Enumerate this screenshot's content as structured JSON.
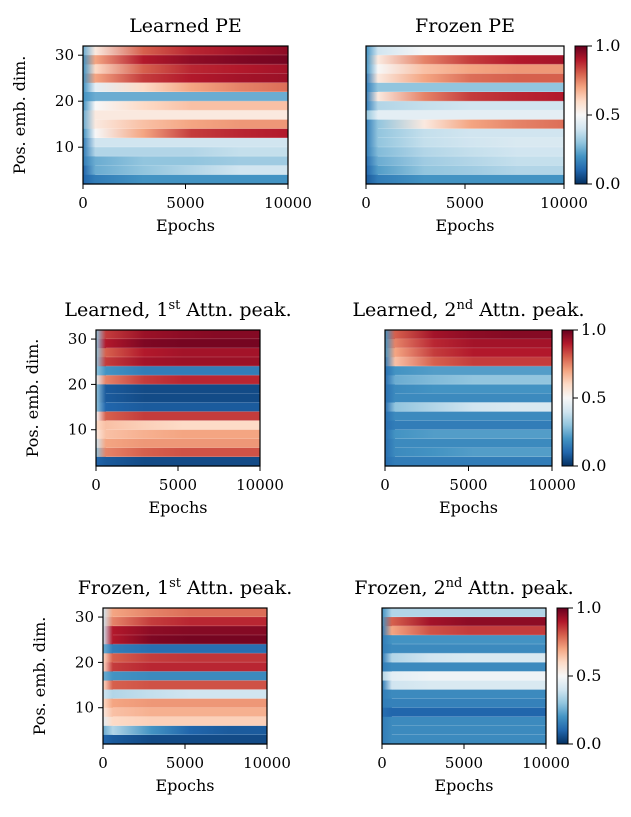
{
  "colors": {
    "colormap": "RdBu_r",
    "low": "#053061",
    "mid": "#f7f7f7",
    "high": "#67001f"
  },
  "chart_data": [
    {
      "type": "heatmap",
      "title": "Learned PE",
      "xlabel": "Epochs",
      "ylabel": "Pos. emb. dim.",
      "xlim": [
        0,
        10000
      ],
      "ylim": [
        2,
        32
      ],
      "xticks": [
        "0",
        "5000",
        "10000"
      ],
      "yticks": [
        "10",
        "20",
        "30"
      ],
      "colorbar": null,
      "bands": [
        {
          "y": 30,
          "values": [
            0.25,
            0.55,
            0.8,
            0.88,
            0.92,
            0.95
          ]
        },
        {
          "y": 28,
          "values": [
            0.2,
            0.7,
            0.9,
            0.95,
            0.97,
            0.98
          ]
        },
        {
          "y": 26,
          "values": [
            0.2,
            0.6,
            0.8,
            0.88,
            0.9,
            0.92
          ]
        },
        {
          "y": 24,
          "values": [
            0.2,
            0.7,
            0.85,
            0.9,
            0.92,
            0.93
          ]
        },
        {
          "y": 22,
          "values": [
            0.2,
            0.45,
            0.6,
            0.7,
            0.75,
            0.78
          ]
        },
        {
          "y": 20,
          "values": [
            0.2,
            0.25,
            0.25,
            0.25,
            0.25,
            0.25
          ]
        },
        {
          "y": 18,
          "values": [
            0.2,
            0.5,
            0.6,
            0.65,
            0.65,
            0.65
          ]
        },
        {
          "y": 16,
          "values": [
            0.25,
            0.55,
            0.55,
            0.55,
            0.55,
            0.55
          ]
        },
        {
          "y": 14,
          "values": [
            0.25,
            0.55,
            0.65,
            0.7,
            0.72,
            0.72
          ]
        },
        {
          "y": 12,
          "values": [
            0.2,
            0.5,
            0.7,
            0.85,
            0.88,
            0.9
          ]
        },
        {
          "y": 10,
          "values": [
            0.15,
            0.4,
            0.4,
            0.4,
            0.4,
            0.4
          ]
        },
        {
          "y": 8,
          "values": [
            0.15,
            0.35,
            0.35,
            0.35,
            0.38,
            0.38
          ]
        },
        {
          "y": 6,
          "values": [
            0.15,
            0.25,
            0.3,
            0.3,
            0.32,
            0.32
          ]
        },
        {
          "y": 4,
          "values": [
            0.1,
            0.25,
            0.3,
            0.35,
            0.4,
            0.4
          ]
        },
        {
          "y": 2,
          "values": [
            0.1,
            0.15,
            0.2,
            0.2,
            0.2,
            0.2
          ]
        }
      ]
    },
    {
      "type": "heatmap",
      "title": "Frozen PE",
      "xlabel": "Epochs",
      "ylabel": "",
      "xlim": [
        0,
        10000
      ],
      "ylim": [
        2,
        32
      ],
      "xticks": [
        "0",
        "5000",
        "10000"
      ],
      "yticks": [],
      "colorbar": {
        "ticks": [
          "0.0",
          "0.5",
          "1.0"
        ],
        "range": [
          0,
          1
        ]
      },
      "bands": [
        {
          "y": 30,
          "values": [
            0.2,
            0.4,
            0.5,
            0.5,
            0.5,
            0.5
          ]
        },
        {
          "y": 28,
          "values": [
            0.2,
            0.55,
            0.75,
            0.85,
            0.9,
            0.92
          ]
        },
        {
          "y": 26,
          "values": [
            0.2,
            0.5,
            0.65,
            0.7,
            0.72,
            0.72
          ]
        },
        {
          "y": 24,
          "values": [
            0.15,
            0.55,
            0.7,
            0.78,
            0.8,
            0.8
          ]
        },
        {
          "y": 22,
          "values": [
            0.15,
            0.3,
            0.3,
            0.3,
            0.3,
            0.3
          ]
        },
        {
          "y": 20,
          "values": [
            0.15,
            0.55,
            0.75,
            0.85,
            0.88,
            0.9
          ]
        },
        {
          "y": 18,
          "values": [
            0.15,
            0.35,
            0.38,
            0.4,
            0.4,
            0.4
          ]
        },
        {
          "y": 16,
          "values": [
            0.3,
            0.45,
            0.45,
            0.45,
            0.45,
            0.45
          ]
        },
        {
          "y": 14,
          "values": [
            0.15,
            0.3,
            0.55,
            0.7,
            0.75,
            0.78
          ]
        },
        {
          "y": 12,
          "values": [
            0.15,
            0.3,
            0.38,
            0.4,
            0.4,
            0.4
          ]
        },
        {
          "y": 10,
          "values": [
            0.15,
            0.3,
            0.38,
            0.4,
            0.42,
            0.42
          ]
        },
        {
          "y": 8,
          "values": [
            0.15,
            0.28,
            0.35,
            0.38,
            0.4,
            0.4
          ]
        },
        {
          "y": 6,
          "values": [
            0.12,
            0.25,
            0.32,
            0.35,
            0.38,
            0.38
          ]
        },
        {
          "y": 4,
          "values": [
            0.1,
            0.22,
            0.3,
            0.32,
            0.35,
            0.35
          ]
        },
        {
          "y": 2,
          "values": [
            0.08,
            0.15,
            0.2,
            0.2,
            0.2,
            0.2
          ]
        }
      ]
    },
    {
      "type": "heatmap",
      "title": "Learned, 1",
      "title_sup": "st",
      "title_tail": " Attn. peak.",
      "xlabel": "Epochs",
      "ylabel": "Pos. emb. dim.",
      "xlim": [
        0,
        10000
      ],
      "ylim": [
        2,
        32
      ],
      "xticks": [
        "0",
        "5000",
        "10000"
      ],
      "yticks": [
        "10",
        "20",
        "30"
      ],
      "colorbar": null,
      "bands": [
        {
          "y": 30,
          "values": [
            0.3,
            0.85,
            0.93,
            0.95,
            0.96,
            0.96
          ]
        },
        {
          "y": 28,
          "values": [
            0.3,
            0.9,
            0.97,
            0.98,
            0.98,
            0.98
          ]
        },
        {
          "y": 26,
          "values": [
            0.3,
            0.8,
            0.9,
            0.92,
            0.92,
            0.92
          ]
        },
        {
          "y": 24,
          "values": [
            0.3,
            0.85,
            0.92,
            0.93,
            0.93,
            0.93
          ]
        },
        {
          "y": 22,
          "values": [
            0.3,
            0.2,
            0.15,
            0.15,
            0.15,
            0.15
          ]
        },
        {
          "y": 20,
          "values": [
            0.45,
            0.75,
            0.85,
            0.88,
            0.88,
            0.88
          ]
        },
        {
          "y": 18,
          "values": [
            0.3,
            0.08,
            0.05,
            0.05,
            0.05,
            0.05
          ]
        },
        {
          "y": 16,
          "values": [
            0.3,
            0.08,
            0.05,
            0.05,
            0.05,
            0.05
          ]
        },
        {
          "y": 14,
          "values": [
            0.3,
            0.1,
            0.08,
            0.08,
            0.08,
            0.08
          ]
        },
        {
          "y": 12,
          "values": [
            0.5,
            0.8,
            0.85,
            0.85,
            0.85,
            0.85
          ]
        },
        {
          "y": 10,
          "values": [
            0.6,
            0.65,
            0.62,
            0.6,
            0.6,
            0.6
          ]
        },
        {
          "y": 8,
          "values": [
            0.55,
            0.65,
            0.68,
            0.7,
            0.7,
            0.7
          ]
        },
        {
          "y": 6,
          "values": [
            0.4,
            0.7,
            0.72,
            0.72,
            0.72,
            0.72
          ]
        },
        {
          "y": 4,
          "values": [
            0.3,
            0.75,
            0.8,
            0.82,
            0.82,
            0.82
          ]
        },
        {
          "y": 2,
          "values": [
            0.1,
            0.08,
            0.05,
            0.05,
            0.05,
            0.05
          ]
        }
      ]
    },
    {
      "type": "heatmap",
      "title": "Learned, 2",
      "title_sup": "nd",
      "title_tail": " Attn. peak.",
      "xlabel": "Epochs",
      "ylabel": "",
      "xlim": [
        0,
        10000
      ],
      "ylim": [
        2,
        32
      ],
      "xticks": [
        "0",
        "5000",
        "10000"
      ],
      "yticks": [],
      "colorbar": {
        "ticks": [
          "0.0",
          "0.5",
          "1.0"
        ],
        "range": [
          0,
          1
        ]
      },
      "bands": [
        {
          "y": 30,
          "values": [
            0.2,
            0.8,
            0.92,
            0.95,
            0.96,
            0.96
          ]
        },
        {
          "y": 28,
          "values": [
            0.2,
            0.75,
            0.88,
            0.92,
            0.92,
            0.92
          ]
        },
        {
          "y": 26,
          "values": [
            0.2,
            0.7,
            0.85,
            0.9,
            0.9,
            0.9
          ]
        },
        {
          "y": 24,
          "values": [
            0.15,
            0.65,
            0.8,
            0.85,
            0.85,
            0.85
          ]
        },
        {
          "y": 22,
          "values": [
            0.12,
            0.2,
            0.22,
            0.22,
            0.22,
            0.22
          ]
        },
        {
          "y": 20,
          "values": [
            0.12,
            0.25,
            0.28,
            0.3,
            0.3,
            0.3
          ]
        },
        {
          "y": 18,
          "values": [
            0.12,
            0.18,
            0.2,
            0.2,
            0.2,
            0.2
          ]
        },
        {
          "y": 16,
          "values": [
            0.12,
            0.18,
            0.18,
            0.18,
            0.18,
            0.18
          ]
        },
        {
          "y": 14,
          "values": [
            0.12,
            0.3,
            0.35,
            0.4,
            0.42,
            0.42
          ]
        },
        {
          "y": 12,
          "values": [
            0.12,
            0.18,
            0.18,
            0.18,
            0.18,
            0.18
          ]
        },
        {
          "y": 10,
          "values": [
            0.12,
            0.15,
            0.15,
            0.15,
            0.15,
            0.15
          ]
        },
        {
          "y": 8,
          "values": [
            0.12,
            0.2,
            0.22,
            0.22,
            0.22,
            0.22
          ]
        },
        {
          "y": 6,
          "values": [
            0.12,
            0.18,
            0.18,
            0.18,
            0.18,
            0.18
          ]
        },
        {
          "y": 4,
          "values": [
            0.12,
            0.18,
            0.2,
            0.22,
            0.22,
            0.22
          ]
        },
        {
          "y": 2,
          "values": [
            0.12,
            0.15,
            0.15,
            0.15,
            0.15,
            0.15
          ]
        }
      ]
    },
    {
      "type": "heatmap",
      "title": "Frozen, 1",
      "title_sup": "st",
      "title_tail": " Attn. peak.",
      "xlabel": "Epochs",
      "ylabel": "Pos. emb. dim.",
      "xlim": [
        0,
        10000
      ],
      "ylim": [
        2,
        32
      ],
      "xticks": [
        "0",
        "5000",
        "10000"
      ],
      "yticks": [
        "10",
        "20",
        "30"
      ],
      "colorbar": null,
      "bands": [
        {
          "y": 30,
          "values": [
            0.4,
            0.7,
            0.75,
            0.78,
            0.78,
            0.78
          ]
        },
        {
          "y": 28,
          "values": [
            0.4,
            0.75,
            0.85,
            0.88,
            0.88,
            0.88
          ]
        },
        {
          "y": 26,
          "values": [
            0.4,
            0.9,
            0.95,
            0.96,
            0.96,
            0.96
          ]
        },
        {
          "y": 24,
          "values": [
            0.4,
            0.9,
            0.97,
            0.98,
            0.98,
            0.98
          ]
        },
        {
          "y": 22,
          "values": [
            0.25,
            0.15,
            0.12,
            0.12,
            0.12,
            0.12
          ]
        },
        {
          "y": 20,
          "values": [
            0.6,
            0.8,
            0.85,
            0.86,
            0.86,
            0.86
          ]
        },
        {
          "y": 18,
          "values": [
            0.6,
            0.85,
            0.88,
            0.88,
            0.88,
            0.88
          ]
        },
        {
          "y": 16,
          "values": [
            0.25,
            0.2,
            0.18,
            0.18,
            0.18,
            0.18
          ]
        },
        {
          "y": 14,
          "values": [
            0.6,
            0.8,
            0.82,
            0.82,
            0.82,
            0.82
          ]
        },
        {
          "y": 12,
          "values": [
            0.4,
            0.35,
            0.38,
            0.4,
            0.4,
            0.4
          ]
        },
        {
          "y": 10,
          "values": [
            0.6,
            0.7,
            0.72,
            0.72,
            0.72,
            0.72
          ]
        },
        {
          "y": 8,
          "values": [
            0.55,
            0.65,
            0.68,
            0.68,
            0.68,
            0.68
          ]
        },
        {
          "y": 6,
          "values": [
            0.45,
            0.6,
            0.62,
            0.62,
            0.62,
            0.62
          ]
        },
        {
          "y": 4,
          "values": [
            0.25,
            0.35,
            0.2,
            0.1,
            0.08,
            0.08
          ]
        },
        {
          "y": 2,
          "values": [
            0.1,
            0.08,
            0.05,
            0.05,
            0.05,
            0.05
          ]
        }
      ]
    },
    {
      "type": "heatmap",
      "title": "Frozen, 2",
      "title_sup": "nd",
      "title_tail": " Attn. peak.",
      "xlabel": "Epochs",
      "ylabel": "",
      "xlim": [
        0,
        10000
      ],
      "ylim": [
        2,
        32
      ],
      "xticks": [
        "0",
        "5000",
        "10000"
      ],
      "yticks": [],
      "colorbar": {
        "ticks": [
          "0.0",
          "0.5",
          "1.0"
        ],
        "range": [
          0,
          1
        ]
      },
      "bands": [
        {
          "y": 30,
          "values": [
            0.2,
            0.35,
            0.35,
            0.35,
            0.35,
            0.35
          ]
        },
        {
          "y": 28,
          "values": [
            0.2,
            0.8,
            0.92,
            0.95,
            0.95,
            0.95
          ]
        },
        {
          "y": 26,
          "values": [
            0.15,
            0.7,
            0.82,
            0.85,
            0.85,
            0.85
          ]
        },
        {
          "y": 24,
          "values": [
            0.15,
            0.2,
            0.2,
            0.2,
            0.2,
            0.2
          ]
        },
        {
          "y": 22,
          "values": [
            0.15,
            0.18,
            0.18,
            0.18,
            0.18,
            0.18
          ]
        },
        {
          "y": 20,
          "values": [
            0.15,
            0.35,
            0.4,
            0.42,
            0.42,
            0.42
          ]
        },
        {
          "y": 18,
          "values": [
            0.15,
            0.18,
            0.18,
            0.18,
            0.18,
            0.18
          ]
        },
        {
          "y": 16,
          "values": [
            0.35,
            0.45,
            0.48,
            0.48,
            0.48,
            0.48
          ]
        },
        {
          "y": 14,
          "values": [
            0.15,
            0.4,
            0.42,
            0.42,
            0.42,
            0.42
          ]
        },
        {
          "y": 12,
          "values": [
            0.15,
            0.18,
            0.18,
            0.18,
            0.18,
            0.18
          ]
        },
        {
          "y": 10,
          "values": [
            0.15,
            0.16,
            0.16,
            0.16,
            0.16,
            0.16
          ]
        },
        {
          "y": 8,
          "values": [
            0.12,
            0.1,
            0.1,
            0.1,
            0.1,
            0.1
          ]
        },
        {
          "y": 6,
          "values": [
            0.15,
            0.18,
            0.18,
            0.18,
            0.18,
            0.18
          ]
        },
        {
          "y": 4,
          "values": [
            0.15,
            0.18,
            0.18,
            0.18,
            0.18,
            0.18
          ]
        },
        {
          "y": 2,
          "values": [
            0.15,
            0.18,
            0.18,
            0.18,
            0.18,
            0.18
          ]
        }
      ]
    }
  ]
}
